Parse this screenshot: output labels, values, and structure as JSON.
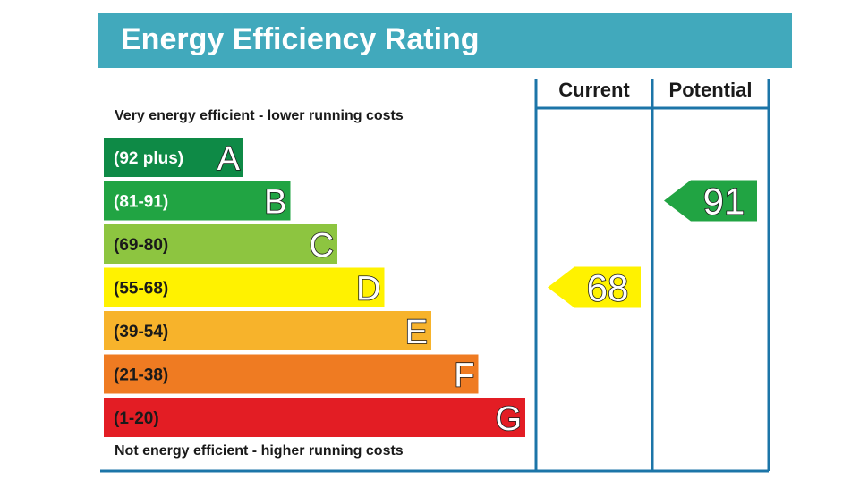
{
  "title": "Energy Efficiency Rating",
  "top_caption": "Very energy efficient - lower running costs",
  "bottom_caption": "Not energy efficient - higher running costs",
  "columns": {
    "current": "Current",
    "potential": "Potential"
  },
  "colors": {
    "header": "#41a9bc",
    "frame": "#1c75a8",
    "band_A": "#0e8a46",
    "band_B": "#21a443",
    "band_C": "#8dc540",
    "band_D": "#fff200",
    "band_E": "#f7b32b",
    "band_F": "#ef7b22",
    "band_G": "#e31d24"
  },
  "chart_data": {
    "type": "bar",
    "title": "Energy Efficiency Rating",
    "bands": [
      {
        "letter": "A",
        "range": "(92 plus)",
        "color": "#0e8a46",
        "label_color": "#ffffff"
      },
      {
        "letter": "B",
        "range": "(81-91)",
        "color": "#21a443",
        "label_color": "#ffffff"
      },
      {
        "letter": "C",
        "range": "(69-80)",
        "color": "#8dc540",
        "label_color": "#1a1a1a"
      },
      {
        "letter": "D",
        "range": "(55-68)",
        "color": "#fff200",
        "label_color": "#1a1a1a"
      },
      {
        "letter": "E",
        "range": "(39-54)",
        "color": "#f7b32b",
        "label_color": "#1a1a1a"
      },
      {
        "letter": "F",
        "range": "(21-38)",
        "color": "#ef7b22",
        "label_color": "#1a1a1a"
      },
      {
        "letter": "G",
        "range": "(1-20)",
        "color": "#e31d24",
        "label_color": "#1a1a1a"
      }
    ],
    "ratings": [
      {
        "column": "Current",
        "value": 68,
        "band": "D",
        "color": "#fff200"
      },
      {
        "column": "Potential",
        "value": 91,
        "band": "B",
        "color": "#21a443"
      }
    ]
  }
}
